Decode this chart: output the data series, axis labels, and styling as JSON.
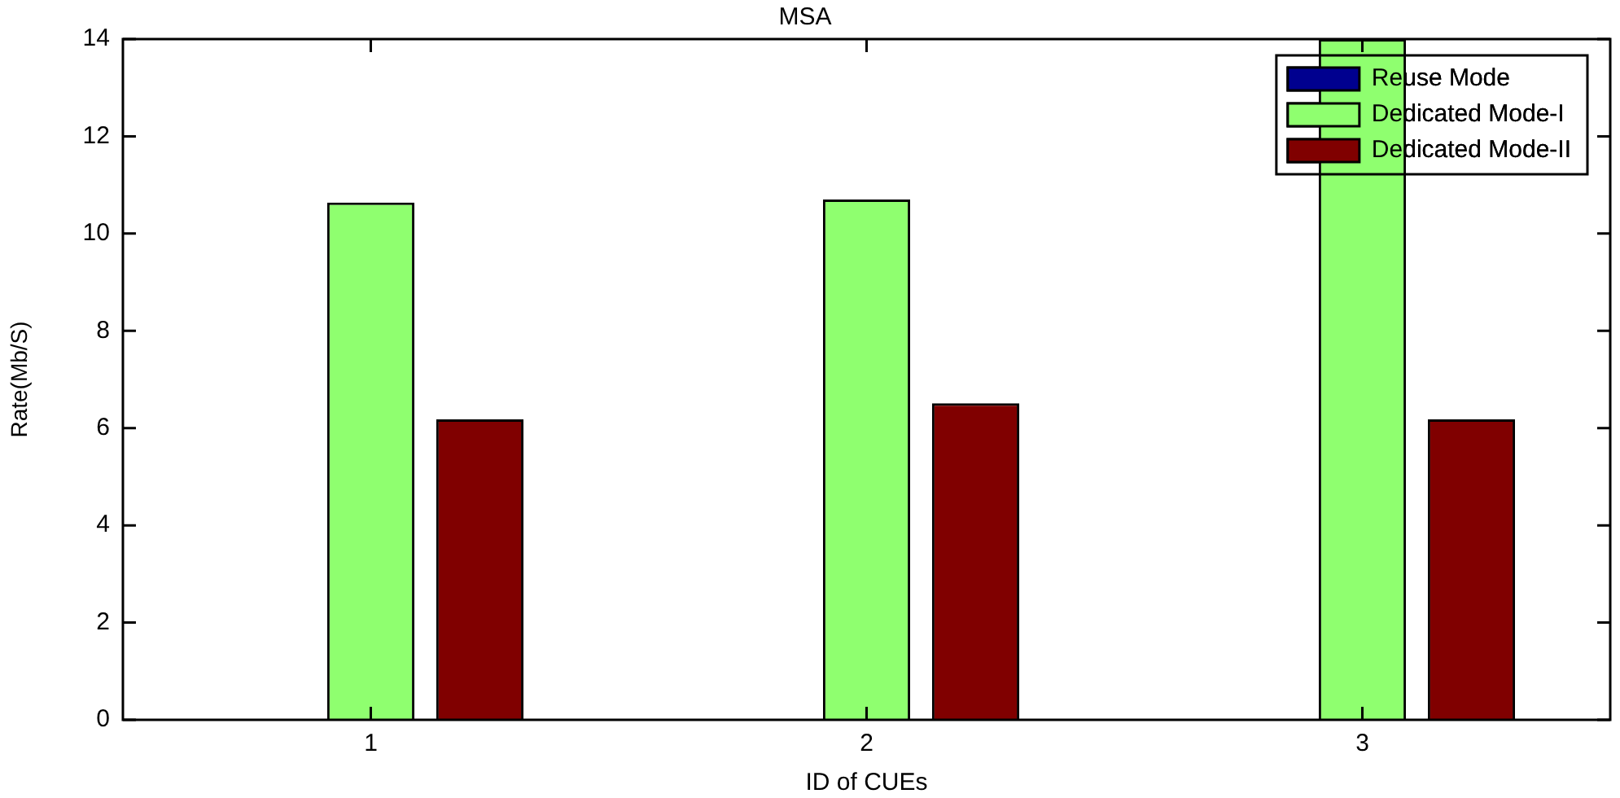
{
  "chart_data": {
    "type": "bar",
    "title": "MSA",
    "xlabel": "ID of CUEs",
    "ylabel": "Rate(Mb/S)",
    "categories": [
      "1",
      "2",
      "3"
    ],
    "series": [
      {
        "name": "Reuse Mode",
        "color": "#00008f",
        "values": [
          0,
          0,
          0
        ]
      },
      {
        "name": "Dedicated Mode-I",
        "color": "#8fff6f",
        "values": [
          10.64,
          10.7,
          14
        ]
      },
      {
        "name": "Dedicated Mode-II",
        "color": "#800000",
        "values": [
          6.18,
          6.51,
          6.18
        ]
      }
    ],
    "ylim": [
      0,
      14
    ],
    "yticks": [
      0,
      2,
      4,
      6,
      8,
      10,
      12,
      14
    ],
    "grid": false,
    "legend": "top right"
  }
}
